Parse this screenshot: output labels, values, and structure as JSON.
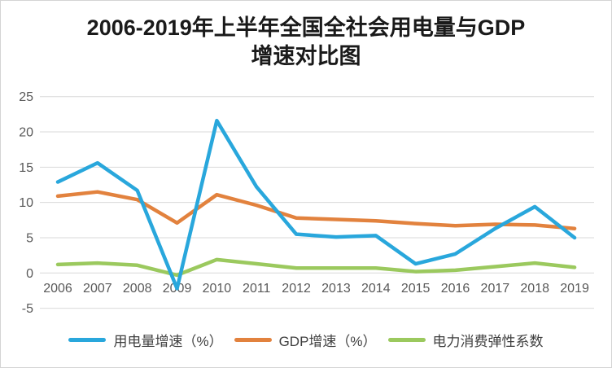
{
  "title": {
    "line1": "2006-2019年上半年全国全社会用电量与GDP",
    "line2": "增速对比图"
  },
  "chart_data": {
    "type": "line",
    "title": "2006-2019年上半年全国全社会用电量与GDP增速对比图",
    "categories": [
      "2006",
      "2007",
      "2008",
      "2009",
      "2010",
      "2011",
      "2012",
      "2013",
      "2014",
      "2015",
      "2016",
      "2017",
      "2018",
      "2019"
    ],
    "series": [
      {
        "name": "用电量增速（%）",
        "color": "#29a7dc",
        "values": [
          12.9,
          15.6,
          11.7,
          -2.2,
          21.6,
          12.2,
          5.5,
          5.1,
          5.3,
          1.3,
          2.7,
          6.3,
          9.4,
          5.0
        ]
      },
      {
        "name": "GDP增速（%）",
        "color": "#e2823e",
        "values": [
          10.9,
          11.5,
          10.4,
          7.1,
          11.1,
          9.6,
          7.8,
          7.6,
          7.4,
          7.0,
          6.7,
          6.9,
          6.8,
          6.3
        ]
      },
      {
        "name": "电力消费弹性系数",
        "color": "#9bc95e",
        "values": [
          1.2,
          1.4,
          1.1,
          -0.3,
          1.9,
          1.3,
          0.7,
          0.7,
          0.7,
          0.2,
          0.4,
          0.9,
          1.4,
          0.8
        ]
      }
    ],
    "xlabel": "",
    "ylabel": "",
    "ylim": [
      -5,
      25
    ],
    "yticks": [
      25,
      20,
      15,
      10,
      5,
      0,
      -5
    ],
    "grid": true,
    "grid_color": "#d9d9d9",
    "tick_color": "#595959",
    "legend_position": "bottom"
  }
}
